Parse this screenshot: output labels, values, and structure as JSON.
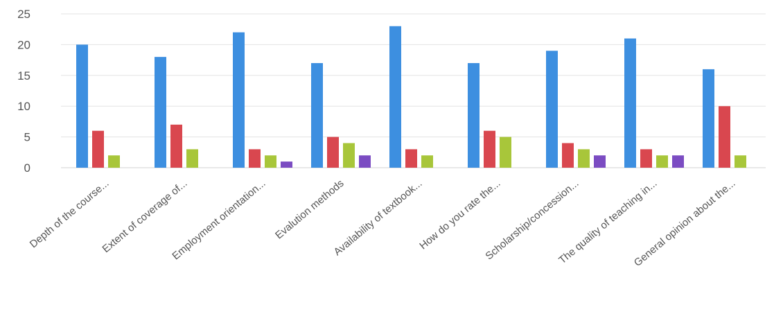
{
  "chart_data": {
    "type": "bar",
    "categories": [
      "Depth of the course...",
      "Extent of coverage of...",
      "Employment orientation...",
      "Evalution methods",
      "Availability of textbook...",
      "How do you rate the...",
      "Scholarship/concession...",
      "The quality of teaching in...",
      "General opinion about the..."
    ],
    "series": [
      {
        "values": [
          20,
          18,
          22,
          17,
          23,
          17,
          19,
          21,
          16
        ],
        "color": "#3d8fe0"
      },
      {
        "values": [
          6,
          7,
          3,
          5,
          3,
          6,
          4,
          3,
          10
        ],
        "color": "#d9474f"
      },
      {
        "values": [
          2,
          3,
          2,
          4,
          2,
          5,
          3,
          2,
          2
        ],
        "color": "#a8c63a"
      },
      {
        "values": [
          0,
          0,
          1,
          2,
          0,
          0,
          2,
          2,
          0
        ],
        "color": "#7b4cc2"
      }
    ],
    "yticks": [
      "0",
      "5",
      "10",
      "15",
      "20",
      "25"
    ],
    "ylim": [
      0,
      25
    ],
    "grid": true,
    "legend": "none",
    "title": "",
    "xlabel": "",
    "ylabel": ""
  }
}
